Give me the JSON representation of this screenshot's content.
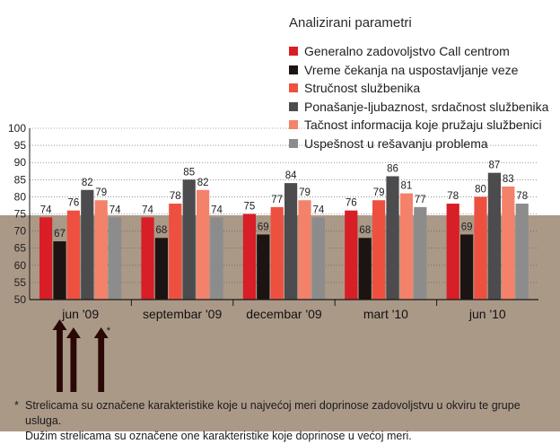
{
  "legend_title": "Analizirani parametri",
  "footnote": {
    "star": "*",
    "line1": "Strelicama su označene karakteristike koje u najvećoj meri doprinose zadovoljstvu u okviru te grupe usluga.",
    "line2": "Dužim strelicama su označene one karakteristike koje doprinose u većoj meri."
  },
  "arrow_note": "*",
  "colors": {
    "background_lower": "#ab9988",
    "axis": "#1a1a1a",
    "grid": "#555555"
  },
  "chart_data": {
    "type": "bar",
    "title": "",
    "xlabel": "",
    "ylabel": "",
    "ylim": [
      50,
      100
    ],
    "yticks": [
      50,
      55,
      60,
      65,
      70,
      75,
      80,
      85,
      90,
      95,
      100
    ],
    "grid": true,
    "legend_placement": "top-right",
    "categories": [
      "jun '09",
      "septembar '09",
      "decembar '09",
      "mart '10",
      "jun '10"
    ],
    "series": [
      {
        "name": "Generalno zadovoljstvo Call centrom",
        "color": "#d81e26",
        "values": [
          74,
          74,
          75,
          76,
          78
        ]
      },
      {
        "name": "Vreme čekanja na uspostavljanje veze",
        "color": "#1c1412",
        "values": [
          67,
          68,
          69,
          68,
          69
        ]
      },
      {
        "name": "Stručnost službenika",
        "color": "#ee5040",
        "values": [
          76,
          78,
          77,
          79,
          80
        ]
      },
      {
        "name": "Ponašanje-ljubaznost, srdačnost službenika",
        "color": "#4c4c4e",
        "values": [
          82,
          85,
          84,
          86,
          87
        ]
      },
      {
        "name": "Tačnost informacija koje pružaju službenici",
        "color": "#f4826a",
        "values": [
          79,
          82,
          79,
          81,
          83
        ]
      },
      {
        "name": "Uspešnost u rešavanju problema",
        "color": "#8c8c8c",
        "values": [
          74,
          74,
          74,
          77,
          78
        ]
      }
    ],
    "arrows": [
      {
        "category": "jun '09",
        "series": "Vreme čekanja na uspostavljanje veze",
        "length": "long"
      },
      {
        "category": "jun '09",
        "series": "Stručnost službenika",
        "length": "short"
      },
      {
        "category": "jun '09",
        "series": "Tačnost informacija koje pružaju službenici",
        "length": "short"
      }
    ]
  }
}
